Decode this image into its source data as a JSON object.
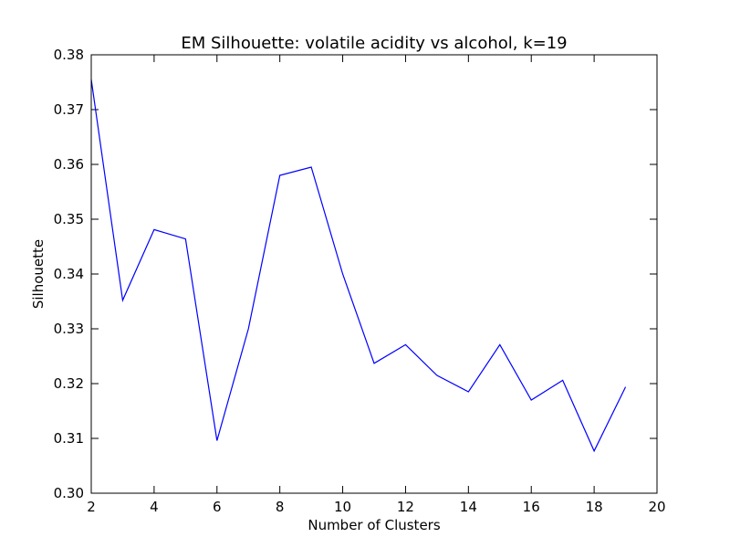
{
  "chart_data": {
    "type": "line",
    "title": "EM Silhouette: volatile acidity vs alcohol, k=19",
    "xlabel": "Number of Clusters",
    "ylabel": "Silhouette",
    "xlim": [
      2,
      20
    ],
    "ylim": [
      0.3,
      0.38
    ],
    "xticks": [
      2,
      4,
      6,
      8,
      10,
      12,
      14,
      16,
      18,
      20
    ],
    "yticks": [
      0.3,
      0.31,
      0.32,
      0.33,
      0.34,
      0.35,
      0.36,
      0.37,
      0.38
    ],
    "grid": false,
    "series": [
      {
        "color": "#0000ff",
        "x": [
          2,
          3,
          4,
          5,
          6,
          7,
          8,
          9,
          10,
          11,
          12,
          13,
          14,
          15,
          16,
          17,
          18,
          19
        ],
        "y": [
          0.3755,
          0.3352,
          0.3481,
          0.3464,
          0.3096,
          0.33,
          0.358,
          0.3595,
          0.34,
          0.3237,
          0.3271,
          0.3215,
          0.3185,
          0.3271,
          0.317,
          0.3206,
          0.3077,
          0.3194
        ]
      }
    ]
  }
}
